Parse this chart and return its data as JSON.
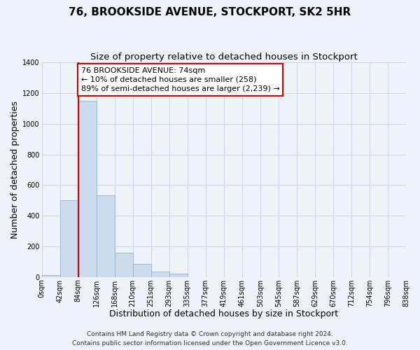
{
  "title": "76, BROOKSIDE AVENUE, STOCKPORT, SK2 5HR",
  "subtitle": "Size of property relative to detached houses in Stockport",
  "xlabel": "Distribution of detached houses by size in Stockport",
  "ylabel": "Number of detached properties",
  "bin_labels": [
    "0sqm",
    "42sqm",
    "84sqm",
    "126sqm",
    "168sqm",
    "210sqm",
    "251sqm",
    "293sqm",
    "335sqm",
    "377sqm",
    "419sqm",
    "461sqm",
    "503sqm",
    "545sqm",
    "587sqm",
    "629sqm",
    "670sqm",
    "712sqm",
    "754sqm",
    "796sqm",
    "838sqm"
  ],
  "bar_heights": [
    10,
    500,
    1150,
    535,
    160,
    85,
    35,
    20,
    0,
    0,
    0,
    0,
    0,
    0,
    0,
    0,
    0,
    0,
    0,
    0
  ],
  "bar_color": "#ccdcee",
  "bar_edge_color": "#92b4d0",
  "vline_x": 2,
  "vline_color": "#cc0000",
  "annotation_text": "76 BROOKSIDE AVENUE: 74sqm\n← 10% of detached houses are smaller (258)\n89% of semi-detached houses are larger (2,239) →",
  "annotation_box_edgecolor": "#cc0000",
  "annotation_box_facecolor": "#ffffff",
  "ylim": [
    0,
    1400
  ],
  "yticks": [
    0,
    200,
    400,
    600,
    800,
    1000,
    1200,
    1400
  ],
  "footer_line1": "Contains HM Land Registry data © Crown copyright and database right 2024.",
  "footer_line2": "Contains public sector information licensed under the Open Government Licence v3.0.",
  "background_color": "#eef2f9",
  "plot_bg_color": "#eef2f9",
  "grid_color": "#c8d0e0",
  "title_fontsize": 11,
  "subtitle_fontsize": 9.5,
  "axis_label_fontsize": 9,
  "tick_fontsize": 7,
  "footer_fontsize": 6.5,
  "annotation_fontsize": 8
}
